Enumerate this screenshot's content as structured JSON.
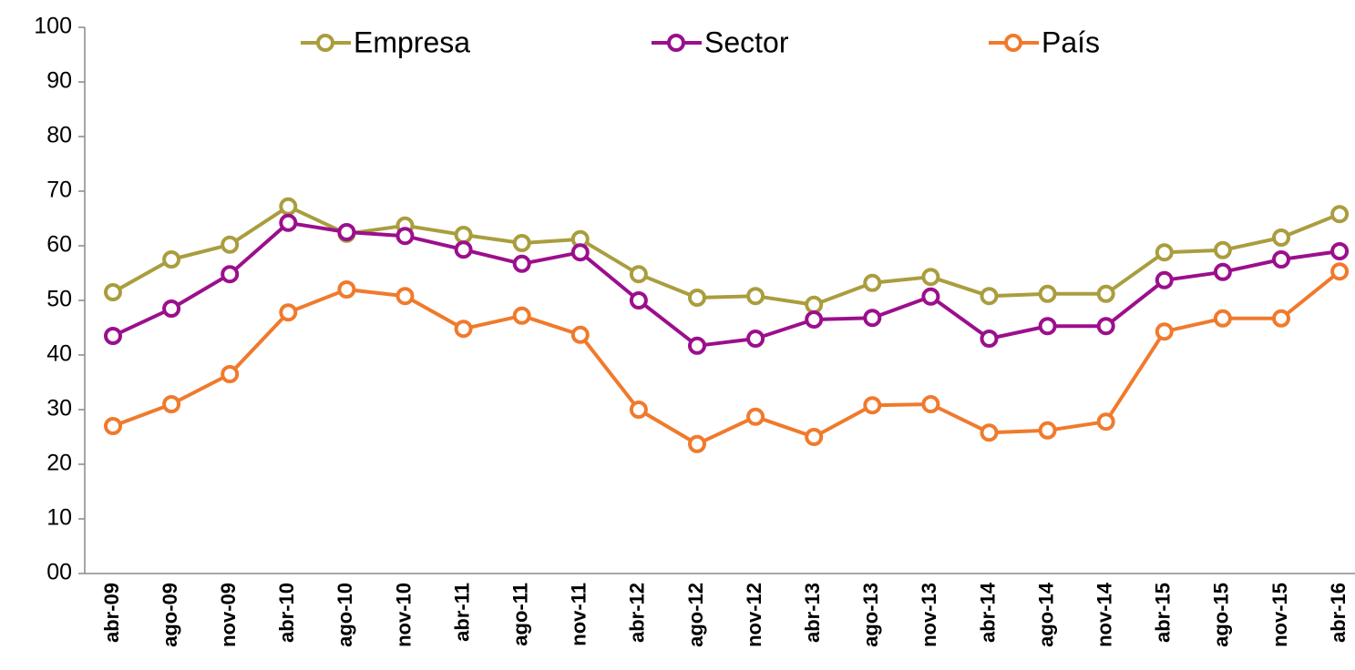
{
  "chart_data": {
    "type": "line",
    "categories": [
      "abr-09",
      "ago-09",
      "nov-09",
      "abr-10",
      "ago-10",
      "nov-10",
      "abr-11",
      "ago-11",
      "nov-11",
      "abr-12",
      "ago-12",
      "nov-12",
      "abr-13",
      "ago-13",
      "nov-13",
      "abr-14",
      "ago-14",
      "nov-14",
      "abr-15",
      "ago-15",
      "nov-15",
      "abr-16"
    ],
    "series": [
      {
        "name": "Empresa",
        "color": "#aa9d3e",
        "values": [
          51.5,
          57.5,
          60.2,
          67.2,
          62.2,
          63.7,
          62,
          60.5,
          61.2,
          54.8,
          50.5,
          50.8,
          49.2,
          53.2,
          54.3,
          50.8,
          51.2,
          51.2,
          58.8,
          59.2,
          61.5,
          65.8
        ]
      },
      {
        "name": "Sector",
        "color": "#9b0f8c",
        "values": [
          43.5,
          48.5,
          54.8,
          64.2,
          62.5,
          61.8,
          59.3,
          56.7,
          58.8,
          50,
          41.7,
          43,
          46.5,
          46.8,
          50.7,
          43,
          45.3,
          45.3,
          53.7,
          55.2,
          57.5,
          59
        ]
      },
      {
        "name": "País",
        "color": "#f07a2c",
        "values": [
          27,
          31,
          36.5,
          47.8,
          52,
          50.8,
          44.8,
          47.2,
          43.7,
          30,
          23.7,
          28.7,
          25,
          30.8,
          31,
          25.8,
          26.2,
          27.8,
          44.3,
          46.7,
          46.7,
          55.3
        ]
      }
    ],
    "ylim": [
      0,
      100
    ],
    "yticks": [
      {
        "value": 0,
        "label": "00"
      },
      10,
      20,
      30,
      40,
      50,
      60,
      70,
      80,
      90,
      100
    ],
    "legend": "top"
  }
}
